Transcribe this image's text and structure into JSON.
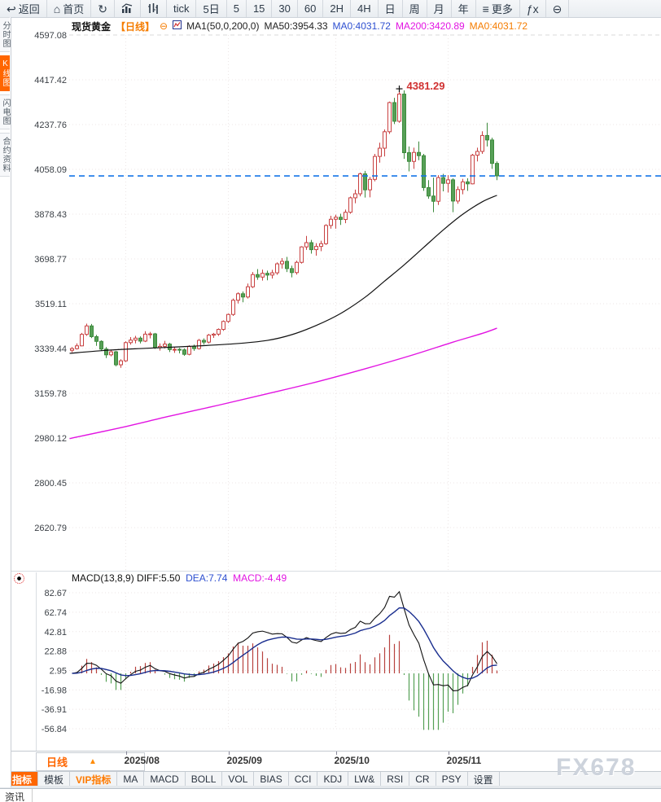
{
  "toolbar": {
    "left_items": [
      {
        "id": "back",
        "icon_name": "back-arrow-icon",
        "icon": "↩",
        "label": "返回"
      },
      {
        "id": "home",
        "icon_name": "home-icon",
        "icon": "⌂",
        "label": "首页"
      },
      {
        "id": "refresh",
        "icon_name": "refresh-icon",
        "icon": "↻",
        "label": ""
      },
      {
        "id": "bar-chart",
        "icon_name": "bar-chart-icon",
        "icon": "@bar",
        "label": ""
      },
      {
        "id": "candle-chart",
        "icon_name": "candle-chart-icon",
        "icon": "@candle",
        "label": ""
      }
    ],
    "timeframes": [
      "tick",
      "5日",
      "5",
      "15",
      "30",
      "60",
      "2H",
      "4H",
      "日",
      "周",
      "月",
      "年"
    ],
    "right_items": [
      {
        "id": "more",
        "icon_name": "menu-icon",
        "icon": "≡",
        "label": "更多"
      },
      {
        "id": "fx",
        "icon_name": "fx-icon",
        "icon": "ƒx",
        "label": ""
      },
      {
        "id": "zoom-out",
        "icon_name": "zoom-out-icon",
        "icon": "⊖",
        "label": ""
      }
    ]
  },
  "sidebar": {
    "tabs": [
      {
        "label": "分时图",
        "active": false
      },
      {
        "label": "K线图",
        "active": true
      },
      {
        "label": "闪电图",
        "active": false
      },
      {
        "label": "合约资料",
        "active": false
      }
    ]
  },
  "title_bar": {
    "symbol": "现货黄金",
    "period_tag": "【日线】",
    "collapse_icon": "⊖",
    "ma_settings": "MA1(50,0,200,0)",
    "ma50": "MA50:3954.33",
    "ma0_blue": "MA0:4031.72",
    "ma200": "MA200:3420.89",
    "ma0_orange": "MA0:4031.72"
  },
  "macd_header": {
    "params": "MACD(13,8,9)",
    "diff": "DIFF:5.50",
    "dea": "DEA:7.74",
    "macd": "MACD:-4.49"
  },
  "bottom": {
    "period_selector": "日线",
    "period_arrow": "▲",
    "tabs": [
      {
        "label": "指标",
        "active": true,
        "vip": false
      },
      {
        "label": "模板",
        "active": false,
        "vip": false
      },
      {
        "label": "VIP指标",
        "active": false,
        "vip": true
      },
      {
        "label": "MA",
        "active": false,
        "vip": false
      },
      {
        "label": "MACD",
        "active": false,
        "vip": false
      },
      {
        "label": "BOLL",
        "active": false,
        "vip": false
      },
      {
        "label": "VOL",
        "active": false,
        "vip": false
      },
      {
        "label": "BIAS",
        "active": false,
        "vip": false
      },
      {
        "label": "CCI",
        "active": false,
        "vip": false
      },
      {
        "label": "KDJ",
        "active": false,
        "vip": false
      },
      {
        "label": "LW&",
        "active": false,
        "vip": false
      },
      {
        "label": "RSI",
        "active": false,
        "vip": false
      },
      {
        "label": "CR",
        "active": false,
        "vip": false
      },
      {
        "label": "PSY",
        "active": false,
        "vip": false
      },
      {
        "label": "设置",
        "active": false,
        "vip": false
      }
    ],
    "watermark": "FX678",
    "news_tab": "资讯"
  },
  "chart_data": {
    "type": "candlestick",
    "title": "现货黄金 日线",
    "y_ticks": [
      4597.08,
      4417.42,
      4237.76,
      4058.09,
      3878.43,
      3698.77,
      3519.11,
      3339.44,
      3159.78,
      2980.12,
      2800.45,
      2620.79
    ],
    "current_price": 4031.72,
    "peak_annotation": {
      "price": 4381.29,
      "candle_index": 67,
      "label": "4381.29"
    },
    "x_labels": [
      "2025/08",
      "2025/09",
      "2025/10",
      "2025/11"
    ],
    "month_start_indices": [
      11,
      32,
      54,
      77
    ],
    "colors": {
      "up": "#c84040",
      "down_fill": "#57a057",
      "down_edge": "#3c8a3c",
      "ma50": "#111111",
      "ma200": "#e214e2",
      "price_line": "#1576e8",
      "hist_pos": "#b8433f",
      "hist_neg": "#55a055",
      "diff": "#111111",
      "dea": "#1a2e8f"
    },
    "candles": [
      [
        3332,
        3345,
        3324,
        3339
      ],
      [
        3339,
        3360,
        3335,
        3350
      ],
      [
        3350,
        3402,
        3348,
        3396
      ],
      [
        3396,
        3439,
        3390,
        3430
      ],
      [
        3430,
        3438,
        3381,
        3387
      ],
      [
        3387,
        3394,
        3350,
        3368
      ],
      [
        3368,
        3372,
        3330,
        3337
      ],
      [
        3337,
        3345,
        3301,
        3314
      ],
      [
        3314,
        3335,
        3308,
        3326
      ],
      [
        3326,
        3330,
        3268,
        3274
      ],
      [
        3274,
        3296,
        3262,
        3290
      ],
      [
        3290,
        3368,
        3285,
        3363
      ],
      [
        3363,
        3385,
        3355,
        3373
      ],
      [
        3373,
        3390,
        3360,
        3381
      ],
      [
        3381,
        3388,
        3360,
        3369
      ],
      [
        3369,
        3409,
        3365,
        3397
      ],
      [
        3397,
        3406,
        3380,
        3398
      ],
      [
        3398,
        3402,
        3338,
        3343
      ],
      [
        3343,
        3360,
        3331,
        3348
      ],
      [
        3348,
        3370,
        3340,
        3357
      ],
      [
        3357,
        3362,
        3325,
        3335
      ],
      [
        3335,
        3345,
        3322,
        3336
      ],
      [
        3336,
        3342,
        3320,
        3334
      ],
      [
        3334,
        3340,
        3310,
        3316
      ],
      [
        3316,
        3352,
        3312,
        3348
      ],
      [
        3348,
        3355,
        3330,
        3339
      ],
      [
        3339,
        3378,
        3335,
        3372
      ],
      [
        3372,
        3380,
        3355,
        3365
      ],
      [
        3365,
        3398,
        3360,
        3393
      ],
      [
        3393,
        3402,
        3382,
        3397
      ],
      [
        3397,
        3420,
        3390,
        3416
      ],
      [
        3416,
        3452,
        3410,
        3448
      ],
      [
        3448,
        3480,
        3442,
        3476
      ],
      [
        3476,
        3540,
        3470,
        3533
      ],
      [
        3533,
        3565,
        3520,
        3559
      ],
      [
        3559,
        3568,
        3525,
        3546
      ],
      [
        3546,
        3600,
        3540,
        3587
      ],
      [
        3587,
        3646,
        3582,
        3636
      ],
      [
        3636,
        3658,
        3615,
        3626
      ],
      [
        3626,
        3656,
        3612,
        3641
      ],
      [
        3641,
        3652,
        3613,
        3634
      ],
      [
        3634,
        3655,
        3620,
        3643
      ],
      [
        3643,
        3685,
        3635,
        3679
      ],
      [
        3679,
        3702,
        3660,
        3689
      ],
      [
        3689,
        3707,
        3646,
        3660
      ],
      [
        3660,
        3672,
        3625,
        3644
      ],
      [
        3644,
        3692,
        3636,
        3685
      ],
      [
        3685,
        3750,
        3680,
        3747
      ],
      [
        3747,
        3791,
        3735,
        3764
      ],
      [
        3764,
        3775,
        3720,
        3736
      ],
      [
        3736,
        3762,
        3712,
        3749
      ],
      [
        3749,
        3772,
        3730,
        3760
      ],
      [
        3760,
        3838,
        3755,
        3833
      ],
      [
        3833,
        3872,
        3820,
        3858
      ],
      [
        3858,
        3876,
        3820,
        3866
      ],
      [
        3866,
        3880,
        3835,
        3857
      ],
      [
        3857,
        3897,
        3842,
        3886
      ],
      [
        3886,
        3949,
        3880,
        3944
      ],
      [
        3944,
        3977,
        3922,
        3960
      ],
      [
        3960,
        4045,
        3950,
        4040
      ],
      [
        4040,
        4052,
        3945,
        3976
      ],
      [
        3976,
        4028,
        3946,
        4018
      ],
      [
        4018,
        4120,
        4010,
        4110
      ],
      [
        4110,
        4165,
        4085,
        4143
      ],
      [
        4143,
        4218,
        4110,
        4209
      ],
      [
        4209,
        4330,
        4200,
        4326
      ],
      [
        4326,
        4345,
        4240,
        4251
      ],
      [
        4251,
        4381,
        4245,
        4360
      ],
      [
        4360,
        4375,
        4100,
        4125
      ],
      [
        4125,
        4150,
        4050,
        4090
      ],
      [
        4090,
        4145,
        4060,
        4126
      ],
      [
        4126,
        4170,
        4095,
        4113
      ],
      [
        4113,
        4120,
        3972,
        3985
      ],
      [
        3985,
        4015,
        3940,
        3951
      ],
      [
        3951,
        4025,
        3886,
        3930
      ],
      [
        3930,
        4035,
        3915,
        4025
      ],
      [
        4025,
        4040,
        3970,
        4002
      ],
      [
        4002,
        4035,
        3965,
        4016
      ],
      [
        4016,
        4022,
        3886,
        3931
      ],
      [
        3931,
        3990,
        3920,
        3977
      ],
      [
        3977,
        4020,
        3958,
        4008
      ],
      [
        4008,
        4022,
        3972,
        4000
      ],
      [
        4000,
        4120,
        3998,
        4115
      ],
      [
        4115,
        4145,
        4090,
        4130
      ],
      [
        4130,
        4211,
        4120,
        4194
      ],
      [
        4194,
        4245,
        4150,
        4176
      ],
      [
        4176,
        4185,
        4060,
        4082
      ],
      [
        4082,
        4090,
        4015,
        4032
      ]
    ],
    "ma50_points": [
      [
        -0.5,
        3320
      ],
      [
        7,
        3332
      ],
      [
        15,
        3340
      ],
      [
        24,
        3348
      ],
      [
        33,
        3358
      ],
      [
        40,
        3372
      ],
      [
        45,
        3395
      ],
      [
        50,
        3432
      ],
      [
        55,
        3480
      ],
      [
        60,
        3545
      ],
      [
        64,
        3610
      ],
      [
        68,
        3675
      ],
      [
        72,
        3745
      ],
      [
        76,
        3815
      ],
      [
        80,
        3878
      ],
      [
        84,
        3928
      ],
      [
        87,
        3954
      ]
    ],
    "ma200_points": [
      [
        -0.5,
        2978
      ],
      [
        10,
        3022
      ],
      [
        20,
        3068
      ],
      [
        30,
        3112
      ],
      [
        40,
        3158
      ],
      [
        50,
        3205
      ],
      [
        60,
        3258
      ],
      [
        70,
        3315
      ],
      [
        78,
        3365
      ],
      [
        84,
        3400
      ],
      [
        87,
        3421
      ]
    ],
    "macd": {
      "params": "MACD(13,8,9)",
      "diff_last": 5.5,
      "dea_last": 7.74,
      "bar_last": -4.49,
      "y_ticks": [
        82.67,
        62.74,
        42.81,
        22.88,
        2.95,
        -16.98,
        -36.91,
        -56.84
      ]
    }
  }
}
